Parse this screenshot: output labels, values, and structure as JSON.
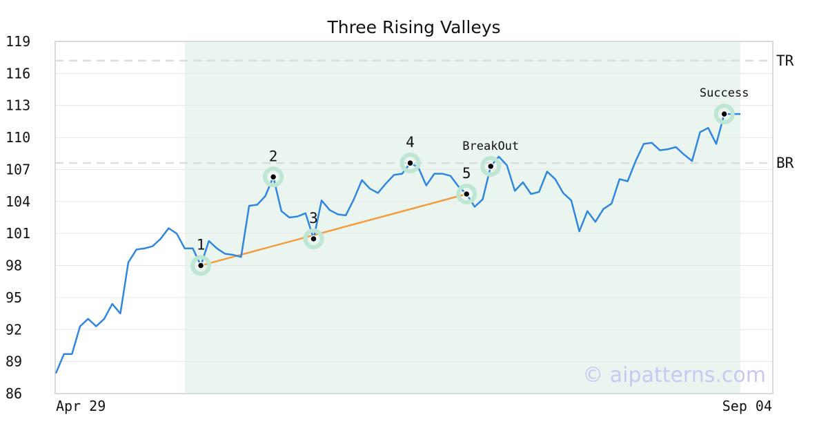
{
  "chart_data": {
    "type": "line",
    "title": "Three Rising Valleys",
    "xlabel": "",
    "ylabel": "",
    "ylim": [
      86,
      119
    ],
    "yticks": [
      86,
      89,
      92,
      95,
      98,
      101,
      104,
      107,
      110,
      113,
      116,
      119
    ],
    "x_tick_labels": [
      {
        "label": "Apr 29",
        "index": 0
      },
      {
        "label": "Sep 04",
        "index": 87
      }
    ],
    "grid": true,
    "series": [
      {
        "color": "#2f86e0",
        "values": [
          87.9,
          89.7,
          89.7,
          92.3,
          93.0,
          92.3,
          93.0,
          94.4,
          93.5,
          98.3,
          99.5,
          99.6,
          99.8,
          100.5,
          101.5,
          101.0,
          99.6,
          99.6,
          98.0,
          100.3,
          99.6,
          99.1,
          99.0,
          98.8,
          103.6,
          103.7,
          104.5,
          106.3,
          103.1,
          102.5,
          102.6,
          102.9,
          100.5,
          104.1,
          103.2,
          102.8,
          102.7,
          104.2,
          106.0,
          105.2,
          104.8,
          105.7,
          106.5,
          106.6,
          107.6,
          107.2,
          105.5,
          106.6,
          106.6,
          106.4,
          105.4,
          104.7,
          103.5,
          104.2,
          107.3,
          108.2,
          107.4,
          105.0,
          105.8,
          104.7,
          104.9,
          106.8,
          106.1,
          104.8,
          104.1,
          101.2,
          103.1,
          102.1,
          103.3,
          103.8,
          106.1,
          105.9,
          107.8,
          109.4,
          109.5,
          108.8,
          108.9,
          109.1,
          108.4,
          107.8,
          110.5,
          110.9,
          109.4,
          112.2,
          112.2,
          112.2
        ]
      }
    ],
    "shaded_region": {
      "from_index": 16,
      "to_index": 85,
      "color": "#eaf5f0"
    },
    "reference_lines": [
      {
        "label": "TR",
        "value": 117.2
      },
      {
        "label": "BR",
        "value": 107.6
      }
    ],
    "trendline": {
      "color": "#f39c40",
      "from_index": 18,
      "to_index": 51
    },
    "markers": [
      {
        "label": "1",
        "index": 18,
        "value": 98.0
      },
      {
        "label": "2",
        "index": 27,
        "value": 106.3
      },
      {
        "label": "3",
        "index": 32,
        "value": 100.5
      },
      {
        "label": "4",
        "index": 44,
        "value": 107.6
      },
      {
        "label": "5",
        "index": 51,
        "value": 104.7
      },
      {
        "label": "BreakOut",
        "index": 54,
        "value": 107.3
      },
      {
        "label": "Success",
        "index": 83,
        "value": 112.2
      }
    ],
    "watermark": "© aipatterns.com"
  }
}
